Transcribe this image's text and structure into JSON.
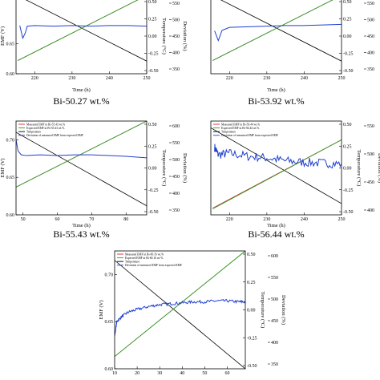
{
  "colors": {
    "measured": "#d62728",
    "expected": "#2ca02c",
    "temperature": "#000000",
    "deviation": "#1f3fd0",
    "axis": "#000000"
  },
  "chart_data": [
    {
      "type": "line",
      "caption": "Bi-50.27 wt.%",
      "xlabel": "Time (h)",
      "ylabel_left": "EMF (V)",
      "ylabel_right_temp": "Temperature (°C)",
      "ylabel_right_dev": "Deviation (%)",
      "xlim": [
        215,
        250
      ],
      "xticks": [
        "220",
        "230",
        "240",
        "250"
      ],
      "xticks_values": [
        220,
        230,
        240,
        250
      ],
      "ylim": [
        0.6,
        0.725
      ],
      "yticks": [
        "0.60",
        "0.65"
      ],
      "yticks_values": [
        0.6,
        0.65
      ],
      "dev_ticks": [
        "0.50",
        "0.25",
        "0.00",
        "-0.25",
        "-0.50"
      ],
      "temp_ticks": [
        "550",
        "500",
        "450",
        "400",
        "350"
      ],
      "legend": [],
      "series": [
        {
          "name": "",
          "role": "expected",
          "x": [
            215.5,
            250
          ],
          "y": [
            0.622,
            0.73
          ]
        },
        {
          "name": "",
          "role": "measured",
          "x": [
            215.5,
            250
          ],
          "y": [
            0.622,
            0.73
          ]
        },
        {
          "name": "",
          "role": "temperature",
          "x": [
            215,
            250
          ],
          "y": [
            0.731,
            0.621
          ]
        },
        {
          "name": "",
          "role": "deviation",
          "x": [
            216,
            216.8,
            217.5,
            218,
            220,
            225,
            230,
            235,
            240,
            245,
            250
          ],
          "y": [
            0.68,
            0.659,
            0.668,
            0.679,
            0.68,
            0.679,
            0.68,
            0.679,
            0.68,
            0.68,
            0.679
          ]
        }
      ]
    },
    {
      "type": "line",
      "caption": "Bi-53.92 wt.%",
      "xlabel": "Time (h)",
      "ylabel_left": "",
      "ylabel_right_temp": "",
      "ylabel_right_dev": "",
      "xlim": [
        215,
        250
      ],
      "xticks": [
        "220",
        "230",
        "240",
        "250"
      ],
      "xticks_values": [
        220,
        230,
        240,
        250
      ],
      "ylim": [
        0.6,
        0.725
      ],
      "yticks": [],
      "yticks_values": [],
      "dev_ticks": [
        "0.50",
        "0.25",
        "0.00",
        "-0.25",
        "-0.50"
      ],
      "temp_ticks": [
        "550",
        "500",
        "450",
        "400",
        "350"
      ],
      "legend": [],
      "series": [
        {
          "name": "",
          "role": "expected",
          "x": [
            215.5,
            250
          ],
          "y": [
            0.622,
            0.73
          ]
        },
        {
          "name": "",
          "role": "measured",
          "x": [
            215.5,
            250
          ],
          "y": [
            0.622,
            0.73
          ]
        },
        {
          "name": "",
          "role": "temperature",
          "x": [
            215,
            250
          ],
          "y": [
            0.731,
            0.621
          ]
        },
        {
          "name": "",
          "role": "deviation",
          "x": [
            216,
            217,
            218,
            220,
            225,
            230,
            235,
            240,
            245,
            250
          ],
          "y": [
            0.671,
            0.655,
            0.672,
            0.677,
            0.678,
            0.679,
            0.68,
            0.68,
            0.681,
            0.682
          ]
        }
      ]
    },
    {
      "type": "line",
      "caption": "Bi-55.43 wt.%",
      "xlabel": "Time (h)",
      "ylabel_left": "EMF (V)",
      "ylabel_right_temp": "Temperature (°C)",
      "ylabel_right_dev": "Deviation (%)",
      "xlim": [
        48,
        86
      ],
      "xticks": [
        "50",
        "60",
        "70",
        "80"
      ],
      "xticks_values": [
        50,
        60,
        70,
        80
      ],
      "ylim": [
        0.6,
        0.725
      ],
      "yticks": [
        "0.60",
        "0.65",
        "0.70"
      ],
      "yticks_values": [
        0.6,
        0.65,
        0.7
      ],
      "dev_ticks": [
        "0.50",
        "0.25",
        "0.00",
        "-0.25",
        "-0.50"
      ],
      "temp_ticks": [
        "600",
        "550",
        "500",
        "450",
        "400",
        "350"
      ],
      "legend": [
        "Measured EMF in Bi-55.43 wt.%",
        "Expected EMF in Bi-55.43 wt.%",
        "Temperature",
        "Deviation of measured EMF from expected EMF"
      ],
      "series": [
        {
          "name": "Expected EMF in Bi-55.43 wt.%",
          "role": "expected",
          "x": [
            48,
            86
          ],
          "y": [
            0.637,
            0.725
          ]
        },
        {
          "name": "Measured EMF in Bi-55.43 wt.%",
          "role": "measured",
          "x": [
            48,
            86
          ],
          "y": [
            0.637,
            0.725
          ]
        },
        {
          "name": "Temperature",
          "role": "temperature",
          "x": [
            48,
            86
          ],
          "y": [
            0.71,
            0.612
          ]
        },
        {
          "name": "Deviation of measured EMF from expected EMF",
          "role": "deviation",
          "x": [
            48,
            48.6,
            49.5,
            51,
            55,
            60,
            65,
            70,
            75,
            80,
            86
          ],
          "y": [
            0.7,
            0.685,
            0.68,
            0.679,
            0.68,
            0.679,
            0.68,
            0.68,
            0.679,
            0.678,
            0.676
          ]
        }
      ]
    },
    {
      "type": "line",
      "caption": "Bi-56.44 wt.%",
      "xlabel": "Time (h)",
      "ylabel_left": "",
      "ylabel_right_temp": "Temperature (°C)",
      "ylabel_right_dev": "Deviation (%)",
      "xlim": [
        215,
        250
      ],
      "xticks": [
        "220",
        "230",
        "240",
        "250"
      ],
      "xticks_values": [
        220,
        230,
        240,
        250
      ],
      "ylim": [
        0.6,
        0.725
      ],
      "yticks": [],
      "yticks_values": [],
      "dev_ticks": [
        "0.50",
        "0.25",
        "0.00",
        "-0.25",
        "-0.50"
      ],
      "temp_ticks": [
        "550",
        "500",
        "450",
        "400"
      ],
      "legend": [
        "Measured EMF in Bi-56.44 wt.%",
        "Expected EMF in Bi-56.44 wt.%",
        "Temperature",
        "Deviation of measured EMF from expected EMF"
      ],
      "series": [
        {
          "name": "Expected EMF in Bi-56.44 wt.%",
          "role": "expected",
          "x": [
            215.5,
            250
          ],
          "y": [
            0.608,
            0.7
          ]
        },
        {
          "name": "Measured EMF in Bi-56.44 wt.%",
          "role": "measured",
          "x": [
            215.5,
            250
          ],
          "y": [
            0.609,
            0.7
          ]
        },
        {
          "name": "Temperature",
          "role": "temperature",
          "x": [
            215,
            250
          ],
          "y": [
            0.716,
            0.615
          ]
        },
        {
          "name": "Deviation of measured EMF from expected EMF",
          "role": "deviation",
          "x": [
            216,
            217,
            220,
            225,
            230,
            235,
            240,
            245,
            250
          ],
          "y": [
            0.69,
            0.68,
            0.682,
            0.678,
            0.676,
            0.672,
            0.67,
            0.669,
            0.668
          ],
          "noise": 0.006
        }
      ]
    },
    {
      "type": "line",
      "caption": "",
      "xlabel": "",
      "ylabel_left": "EMF (V)",
      "ylabel_right_temp": "Temperature (°C)",
      "ylabel_right_dev": "Deviation (%)",
      "xlim": [
        10,
        68
      ],
      "xticks": [
        "10",
        "20",
        "30",
        "40",
        "50",
        "60"
      ],
      "xticks_values": [
        10,
        20,
        30,
        40,
        50,
        60
      ],
      "ylim": [
        0.6,
        0.725
      ],
      "yticks": [
        "0.60",
        "0.65",
        "0.70"
      ],
      "yticks_values": [
        0.6,
        0.65,
        0.7
      ],
      "dev_ticks": [
        "0.50",
        "0.25",
        "0.00",
        "-0.25",
        "-0.50"
      ],
      "temp_ticks": [
        "600",
        "550",
        "500",
        "450",
        "400",
        "350"
      ],
      "legend": [
        "Measured EMF in Bi-60.16 wt.%",
        "Expected EMF in Bi-60.16 wt.%",
        "Temperature",
        "Deviation of measured EMF from expected EMF"
      ],
      "series": [
        {
          "name": "Expected EMF in Bi-60.16 wt.%",
          "role": "expected",
          "x": [
            10,
            68
          ],
          "y": [
            0.613,
            0.725
          ]
        },
        {
          "name": "Measured EMF in Bi-60.16 wt.%",
          "role": "measured",
          "x": [
            10,
            68
          ],
          "y": [
            0.613,
            0.725
          ]
        },
        {
          "name": "Temperature",
          "role": "temperature",
          "x": [
            10,
            68
          ],
          "y": [
            0.715,
            0.6
          ]
        },
        {
          "name": "Deviation of measured EMF from expected EMF",
          "role": "deviation",
          "x": [
            10,
            11,
            13,
            16,
            20,
            25,
            30,
            35,
            40,
            45,
            50,
            55,
            60,
            65,
            68
          ],
          "y": [
            0.635,
            0.65,
            0.655,
            0.66,
            0.663,
            0.666,
            0.668,
            0.669,
            0.67,
            0.671,
            0.671,
            0.672,
            0.672,
            0.671,
            0.671
          ],
          "noise": 0.0015
        }
      ]
    }
  ]
}
